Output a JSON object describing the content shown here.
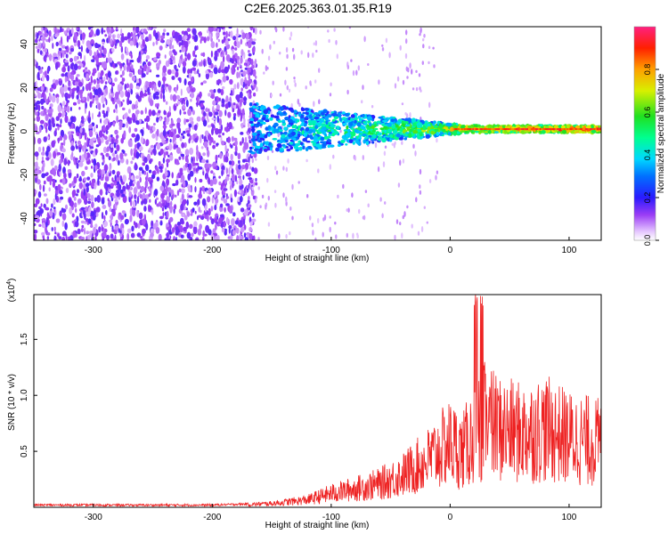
{
  "title": "C2E6.2025.363.01.35.R19",
  "colors": {
    "snr_line": "#ee2222",
    "axis": "#000000",
    "noise_dots": "#7a2cf0"
  },
  "chart_data": [
    {
      "type": "heatmap",
      "title": "C2E6.2025.363.01.35.R19",
      "xlabel": "Height of straight line (km)",
      "ylabel": "Frequency (Hz)",
      "xlim": [
        -350,
        127
      ],
      "ylim": [
        -50,
        48
      ],
      "x_ticks": [
        -300,
        -200,
        -100,
        0,
        100
      ],
      "y_ticks": [
        -40,
        -20,
        0,
        20,
        40
      ],
      "x_tick_labels": [
        "-300",
        "-200",
        "-100",
        "0",
        "100"
      ],
      "y_tick_labels": [
        "-40",
        "-20",
        "0",
        "20",
        "40"
      ],
      "colorbar": {
        "label": "Normalized spectral amplitude",
        "range": [
          0,
          1
        ],
        "ticks": [
          0.0,
          0.2,
          0.4,
          0.6,
          0.8
        ],
        "tick_labels": [
          "0.0",
          "0.2",
          "0.4",
          "0.6",
          "0.8"
        ]
      },
      "description_values": {
        "noise_region_x": [
          -350,
          -170
        ],
        "signal_start_x": -168,
        "signal_center_freq_hz": 1,
        "signal_peak_amplitude": 0.95
      }
    },
    {
      "type": "line",
      "xlabel": "Height of straight line (km)",
      "ylabel": "SNR (10 * v/v)",
      "y_multiplier": "(x10",
      "y_multiplier_exp": "4",
      "y_multiplier_close": ")",
      "xlim": [
        -350,
        127
      ],
      "ylim": [
        0,
        1.9
      ],
      "x_ticks": [
        -300,
        -200,
        -100,
        0,
        100
      ],
      "y_ticks": [
        0.5,
        1.0,
        1.5
      ],
      "x_tick_labels": [
        "-300",
        "-200",
        "-100",
        "0",
        "100"
      ],
      "y_tick_labels": [
        "0.5",
        "1.0",
        "1.5"
      ],
      "series": [
        {
          "name": "SNR",
          "x": [
            -350,
            -300,
            -250,
            -200,
            -170,
            -150,
            -120,
            -100,
            -80,
            -60,
            -40,
            -20,
            0,
            10,
            20,
            30,
            40,
            60,
            80,
            100,
            127
          ],
          "values": [
            0.02,
            0.02,
            0.02,
            0.02,
            0.03,
            0.04,
            0.08,
            0.15,
            0.2,
            0.25,
            0.35,
            0.5,
            0.7,
            0.6,
            0.8,
            0.95,
            0.85,
            0.8,
            0.85,
            0.75,
            0.7
          ]
        }
      ]
    }
  ]
}
